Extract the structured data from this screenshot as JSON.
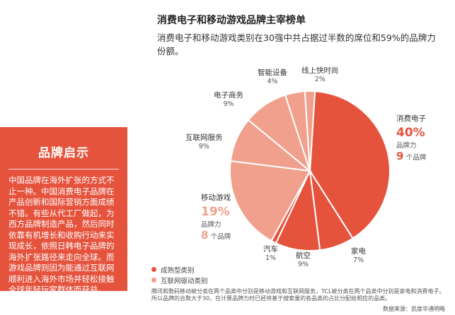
{
  "colors": {
    "accent": "#e5533d",
    "mature": "#e5533d",
    "internet": "#f0a08c"
  },
  "header": {
    "title": "消费电子和移动游戏品牌主宰榜单",
    "subtitle": "消费电子和移动游戏类别在30强中共占据过半数的席位和59%的品牌力份额。"
  },
  "insight": {
    "title": "品牌启示",
    "body": "中国品牌在海外扩张的方式不止一种。中国消费电子品牌在产品创新和国际营销方面成绩不错。有些从代工厂做起，为西方品牌制造产品，然后同时依靠有机增长和收购行动来实现成长，依照日韩电子品牌的海外扩张路径来走向全球。而游戏品牌则因为能通过互联网顺利进入海外市场并轻松接触全球年轻玩家群体而获益。"
  },
  "labels": {
    "brand_power": "品牌力",
    "brands_unit": "个品牌"
  },
  "chart_data": {
    "type": "pie",
    "slices": [
      {
        "name": "消费电子",
        "value": 40,
        "pct_label": "40%",
        "brands": 9,
        "group": "mature"
      },
      {
        "name": "家电",
        "value": 7,
        "pct_label": "7%",
        "group": "mature"
      },
      {
        "name": "航空",
        "value": 9,
        "pct_label": "9%",
        "group": "mature"
      },
      {
        "name": "汽车",
        "value": 1,
        "pct_label": "1%",
        "group": "mature"
      },
      {
        "name": "移动游戏",
        "value": 19,
        "pct_label": "19%",
        "brands": 8,
        "group": "internet"
      },
      {
        "name": "互联网服务",
        "value": 9,
        "pct_label": "9%",
        "group": "internet"
      },
      {
        "name": "电子商务",
        "value": 9,
        "pct_label": "9%",
        "group": "internet"
      },
      {
        "name": "智能设备",
        "value": 4,
        "pct_label": "4%",
        "group": "internet"
      },
      {
        "name": "线上快时尚",
        "value": 2,
        "pct_label": "2%",
        "group": "internet"
      }
    ],
    "legend": [
      {
        "label": "成熟型类别",
        "group": "mature"
      },
      {
        "label": "互联网驱动类别",
        "group": "internet"
      }
    ]
  },
  "footnote": "腾讯和数码移动被分类在两个品类中分别是移动游戏和互联网服务。TCL被分类在两个品类中分别是家电和消费电子。所以品牌的总数大于30，在计算品牌力时已经将基于搜索量的各品类的占比分配给相应的品类。",
  "source": "数据来源：凯度华通明略"
}
